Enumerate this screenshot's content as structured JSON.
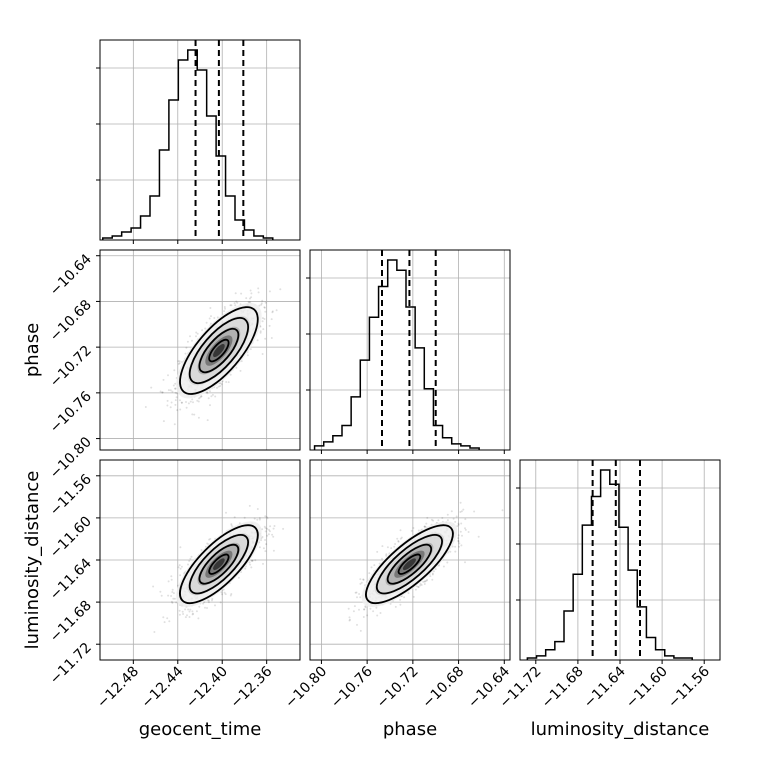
{
  "chart_data": {
    "type": "corner",
    "parameters": [
      "geocent_time",
      "phase",
      "luminosity_distance"
    ],
    "axes": [
      {
        "name": "geocent_time",
        "range": [
          -12.51,
          -12.33
        ],
        "ticks": [
          -12.48,
          -12.44,
          -12.4,
          -12.36
        ],
        "tick_labels": [
          "−12.48",
          "−12.44",
          "−12.40",
          "−12.36"
        ]
      },
      {
        "name": "phase",
        "range": [
          -10.81,
          -10.635
        ],
        "ticks": [
          -10.8,
          -10.76,
          -10.72,
          -10.68,
          -10.64
        ],
        "tick_labels": [
          "−10.80",
          "−10.76",
          "−10.72",
          "−10.68",
          "−10.64"
        ]
      },
      {
        "name": "luminosity_distance",
        "range": [
          -11.735,
          -11.545
        ],
        "ticks": [
          -11.72,
          -11.68,
          -11.64,
          -11.6,
          -11.56
        ],
        "tick_labels": [
          "−11.72",
          "−11.68",
          "−11.64",
          "−11.60",
          "−11.56"
        ]
      }
    ],
    "quantiles": [
      [
        -12.424,
        -12.403,
        -12.381
      ],
      [
        -10.747,
        -10.723,
        -10.7
      ],
      [
        -11.666,
        -11.644,
        -11.621
      ]
    ],
    "histograms": [
      {
        "x_start": -12.5075,
        "bin_width": 0.0085,
        "counts": [
          0.01,
          0.02,
          0.04,
          0.06,
          0.12,
          0.22,
          0.45,
          0.7,
          0.9,
          0.95,
          0.85,
          0.62,
          0.42,
          0.22,
          0.1,
          0.05,
          0.02,
          0.01
        ]
      },
      {
        "x_start": -10.806,
        "bin_width": 0.008,
        "counts": [
          0.02,
          0.04,
          0.07,
          0.12,
          0.26,
          0.44,
          0.65,
          0.8,
          0.93,
          0.88,
          0.7,
          0.5,
          0.3,
          0.12,
          0.06,
          0.03,
          0.02,
          0.01
        ]
      },
      {
        "x_start": -11.728,
        "bin_width": 0.0087,
        "counts": [
          0.01,
          0.02,
          0.05,
          0.09,
          0.24,
          0.42,
          0.66,
          0.8,
          0.93,
          0.86,
          0.65,
          0.44,
          0.26,
          0.11,
          0.05,
          0.02,
          0.01,
          0.01
        ]
      }
    ],
    "panels_2d": [
      {
        "x": "geocent_time",
        "y": "phase",
        "mean": [
          -12.403,
          -10.723
        ],
        "sd": [
          0.0175,
          0.019
        ],
        "corr": 0.72
      },
      {
        "x": "geocent_time",
        "y": "luminosity_distance",
        "mean": [
          -12.403,
          -11.644
        ],
        "sd": [
          0.0175,
          0.0185
        ],
        "corr": 0.75
      },
      {
        "x": "phase",
        "y": "luminosity_distance",
        "mean": [
          -10.723,
          -11.644
        ],
        "sd": [
          0.019,
          0.0185
        ],
        "corr": 0.78
      }
    ],
    "contour_sigma_levels": [
      0.5,
      1.0,
      1.5,
      2.0
    ],
    "grid": true
  }
}
